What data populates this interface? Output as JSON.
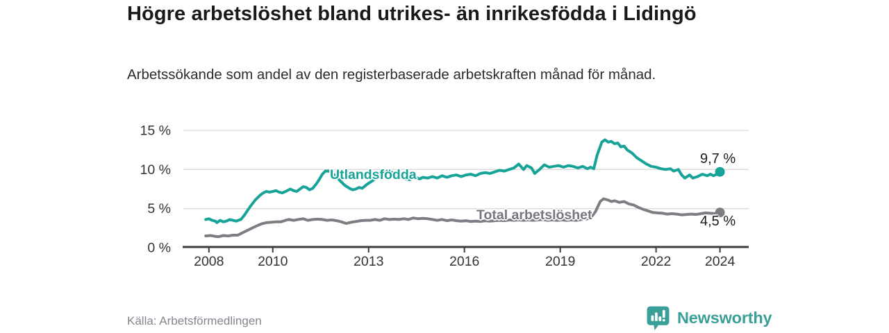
{
  "header": {
    "title": "Högre arbetslöshet bland utrikes- än inrikesfödda i Lidingö",
    "subtitle": "Arbetssökande som andel av den registerbaserade arbetskraften månad för månad."
  },
  "footer": {
    "source": "Källa: Arbetsförmedlingen",
    "brand": "Newsworthy"
  },
  "colors": {
    "series_utlandsfodda": "#17a398",
    "series_total": "#7d7d84",
    "grid": "#d9d9d9",
    "axis": "#3c3c3c",
    "tick_text": "#333333",
    "value_text": "#1a1a1a",
    "muted_text": "#85858f",
    "brand_teal": "#3a9f98"
  },
  "chart_data": {
    "type": "line",
    "title": "Högre arbetslöshet bland utrikes- än inrikesfödda i Lidingö",
    "subtitle": "Arbetssökande som andel av den registerbaserade arbetskraften månad för månad.",
    "source": "Källa: Arbetsförmedlingen",
    "x_axis": {
      "range": [
        2007.2,
        2024.9
      ],
      "tick_years": [
        2008,
        2010,
        2013,
        2016,
        2019,
        2022,
        2024
      ],
      "tick_labels": [
        "2008",
        "2010",
        "2013",
        "2016",
        "2019",
        "2022",
        "2024"
      ]
    },
    "y_axis": {
      "range": [
        0,
        15
      ],
      "ticks": [
        0,
        5,
        10,
        15
      ],
      "tick_labels": [
        "0 %",
        "5 %",
        "10 %",
        "15 %"
      ],
      "grid": true
    },
    "legend_position": "inline-labels",
    "series": [
      {
        "name": "Utlandsfödda",
        "color": "#17a398",
        "end_value": 9.7,
        "end_label": "9,7 %",
        "points": [
          [
            2007.9,
            3.6
          ],
          [
            2008.0,
            3.7
          ],
          [
            2008.1,
            3.5
          ],
          [
            2008.2,
            3.4
          ],
          [
            2008.25,
            3.2
          ],
          [
            2008.35,
            3.5
          ],
          [
            2008.45,
            3.3
          ],
          [
            2008.55,
            3.4
          ],
          [
            2008.65,
            3.6
          ],
          [
            2008.75,
            3.5
          ],
          [
            2008.85,
            3.4
          ],
          [
            2009.0,
            3.6
          ],
          [
            2009.1,
            4.1
          ],
          [
            2009.2,
            4.7
          ],
          [
            2009.3,
            5.3
          ],
          [
            2009.45,
            6.1
          ],
          [
            2009.6,
            6.7
          ],
          [
            2009.7,
            7.0
          ],
          [
            2009.8,
            7.2
          ],
          [
            2009.9,
            7.1
          ],
          [
            2010.0,
            7.2
          ],
          [
            2010.1,
            7.3
          ],
          [
            2010.2,
            7.1
          ],
          [
            2010.3,
            7.0
          ],
          [
            2010.45,
            7.3
          ],
          [
            2010.55,
            7.5
          ],
          [
            2010.65,
            7.3
          ],
          [
            2010.75,
            7.2
          ],
          [
            2010.85,
            7.5
          ],
          [
            2010.95,
            7.8
          ],
          [
            2011.05,
            7.7
          ],
          [
            2011.15,
            7.4
          ],
          [
            2011.25,
            7.6
          ],
          [
            2011.35,
            8.1
          ],
          [
            2011.45,
            8.7
          ],
          [
            2011.55,
            9.4
          ],
          [
            2011.65,
            9.8
          ],
          [
            2011.75,
            9.8
          ],
          [
            2011.85,
            9.6
          ],
          [
            2011.95,
            9.2
          ],
          [
            2012.1,
            8.6
          ],
          [
            2012.25,
            8.0
          ],
          [
            2012.4,
            7.6
          ],
          [
            2012.5,
            7.4
          ],
          [
            2012.6,
            7.5
          ],
          [
            2012.7,
            7.7
          ],
          [
            2012.8,
            7.6
          ],
          [
            2012.95,
            8.1
          ],
          [
            2013.1,
            8.5
          ],
          [
            2013.25,
            8.9
          ],
          [
            2013.4,
            9.5
          ],
          [
            2013.55,
            9.9
          ],
          [
            2013.7,
            9.7
          ],
          [
            2013.85,
            9.3
          ],
          [
            2014.0,
            9.0
          ],
          [
            2014.15,
            8.8
          ],
          [
            2014.3,
            8.7
          ],
          [
            2014.45,
            9.0
          ],
          [
            2014.6,
            8.8
          ],
          [
            2014.7,
            9.0
          ],
          [
            2014.85,
            8.9
          ],
          [
            2015.0,
            9.1
          ],
          [
            2015.15,
            8.9
          ],
          [
            2015.3,
            9.2
          ],
          [
            2015.45,
            9.0
          ],
          [
            2015.6,
            9.2
          ],
          [
            2015.75,
            9.3
          ],
          [
            2015.9,
            9.1
          ],
          [
            2016.05,
            9.3
          ],
          [
            2016.2,
            9.4
          ],
          [
            2016.35,
            9.2
          ],
          [
            2016.5,
            9.5
          ],
          [
            2016.65,
            9.6
          ],
          [
            2016.8,
            9.5
          ],
          [
            2016.95,
            9.7
          ],
          [
            2017.1,
            9.9
          ],
          [
            2017.25,
            9.8
          ],
          [
            2017.4,
            10.0
          ],
          [
            2017.55,
            10.2
          ],
          [
            2017.7,
            10.7
          ],
          [
            2017.85,
            10.0
          ],
          [
            2017.95,
            10.5
          ],
          [
            2018.1,
            10.2
          ],
          [
            2018.2,
            9.5
          ],
          [
            2018.35,
            10.0
          ],
          [
            2018.5,
            10.6
          ],
          [
            2018.65,
            10.3
          ],
          [
            2018.8,
            10.4
          ],
          [
            2018.95,
            10.5
          ],
          [
            2019.1,
            10.3
          ],
          [
            2019.25,
            10.5
          ],
          [
            2019.4,
            10.4
          ],
          [
            2019.55,
            10.2
          ],
          [
            2019.7,
            10.4
          ],
          [
            2019.85,
            10.1
          ],
          [
            2019.95,
            10.3
          ],
          [
            2020.05,
            10.1
          ],
          [
            2020.15,
            11.8
          ],
          [
            2020.3,
            13.5
          ],
          [
            2020.4,
            13.8
          ],
          [
            2020.5,
            13.5
          ],
          [
            2020.6,
            13.6
          ],
          [
            2020.7,
            13.3
          ],
          [
            2020.8,
            13.4
          ],
          [
            2020.9,
            12.9
          ],
          [
            2021.0,
            13.0
          ],
          [
            2021.1,
            12.5
          ],
          [
            2021.25,
            12.1
          ],
          [
            2021.4,
            11.5
          ],
          [
            2021.55,
            11.1
          ],
          [
            2021.7,
            10.7
          ],
          [
            2021.85,
            10.4
          ],
          [
            2022.0,
            10.3
          ],
          [
            2022.15,
            10.1
          ],
          [
            2022.3,
            10.0
          ],
          [
            2022.45,
            10.1
          ],
          [
            2022.55,
            9.8
          ],
          [
            2022.7,
            10.0
          ],
          [
            2022.8,
            9.3
          ],
          [
            2022.9,
            8.9
          ],
          [
            2023.05,
            9.3
          ],
          [
            2023.15,
            8.9
          ],
          [
            2023.3,
            9.1
          ],
          [
            2023.45,
            9.4
          ],
          [
            2023.6,
            9.2
          ],
          [
            2023.7,
            9.4
          ],
          [
            2023.8,
            9.2
          ],
          [
            2023.9,
            9.4
          ],
          [
            2024.0,
            9.7
          ]
        ]
      },
      {
        "name": "Total arbetslöshet",
        "color": "#7d7d84",
        "end_value": 4.5,
        "end_label": "4,5 %",
        "points": [
          [
            2007.9,
            1.5
          ],
          [
            2008.05,
            1.55
          ],
          [
            2008.2,
            1.45
          ],
          [
            2008.3,
            1.4
          ],
          [
            2008.45,
            1.55
          ],
          [
            2008.6,
            1.5
          ],
          [
            2008.75,
            1.6
          ],
          [
            2008.9,
            1.6
          ],
          [
            2009.05,
            1.9
          ],
          [
            2009.2,
            2.2
          ],
          [
            2009.35,
            2.5
          ],
          [
            2009.5,
            2.8
          ],
          [
            2009.65,
            3.05
          ],
          [
            2009.8,
            3.2
          ],
          [
            2009.95,
            3.25
          ],
          [
            2010.1,
            3.3
          ],
          [
            2010.25,
            3.3
          ],
          [
            2010.4,
            3.5
          ],
          [
            2010.5,
            3.6
          ],
          [
            2010.65,
            3.5
          ],
          [
            2010.8,
            3.6
          ],
          [
            2010.95,
            3.7
          ],
          [
            2011.1,
            3.5
          ],
          [
            2011.25,
            3.6
          ],
          [
            2011.4,
            3.65
          ],
          [
            2011.55,
            3.6
          ],
          [
            2011.7,
            3.5
          ],
          [
            2011.85,
            3.55
          ],
          [
            2012.0,
            3.45
          ],
          [
            2012.15,
            3.3
          ],
          [
            2012.3,
            3.1
          ],
          [
            2012.45,
            3.25
          ],
          [
            2012.6,
            3.35
          ],
          [
            2012.75,
            3.45
          ],
          [
            2012.9,
            3.5
          ],
          [
            2013.05,
            3.5
          ],
          [
            2013.2,
            3.6
          ],
          [
            2013.35,
            3.5
          ],
          [
            2013.5,
            3.7
          ],
          [
            2013.65,
            3.6
          ],
          [
            2013.8,
            3.65
          ],
          [
            2013.95,
            3.6
          ],
          [
            2014.1,
            3.7
          ],
          [
            2014.25,
            3.6
          ],
          [
            2014.4,
            3.8
          ],
          [
            2014.55,
            3.7
          ],
          [
            2014.7,
            3.75
          ],
          [
            2014.85,
            3.7
          ],
          [
            2015.0,
            3.6
          ],
          [
            2015.15,
            3.5
          ],
          [
            2015.3,
            3.6
          ],
          [
            2015.45,
            3.45
          ],
          [
            2015.6,
            3.55
          ],
          [
            2015.75,
            3.45
          ],
          [
            2015.9,
            3.4
          ],
          [
            2016.05,
            3.45
          ],
          [
            2016.2,
            3.35
          ],
          [
            2016.35,
            3.4
          ],
          [
            2016.5,
            3.35
          ],
          [
            2016.65,
            3.45
          ],
          [
            2016.8,
            3.4
          ],
          [
            2016.95,
            3.45
          ],
          [
            2017.1,
            3.5
          ],
          [
            2017.25,
            3.45
          ],
          [
            2017.4,
            3.55
          ],
          [
            2017.55,
            3.5
          ],
          [
            2017.7,
            3.55
          ],
          [
            2017.85,
            3.5
          ],
          [
            2018.0,
            3.55
          ],
          [
            2018.15,
            3.5
          ],
          [
            2018.3,
            3.55
          ],
          [
            2018.45,
            3.6
          ],
          [
            2018.6,
            3.5
          ],
          [
            2018.75,
            3.55
          ],
          [
            2018.9,
            3.5
          ],
          [
            2019.05,
            3.55
          ],
          [
            2019.2,
            3.5
          ],
          [
            2019.35,
            3.55
          ],
          [
            2019.5,
            3.5
          ],
          [
            2019.65,
            3.6
          ],
          [
            2019.8,
            3.65
          ],
          [
            2019.95,
            3.8
          ],
          [
            2020.1,
            4.6
          ],
          [
            2020.25,
            5.9
          ],
          [
            2020.35,
            6.25
          ],
          [
            2020.5,
            6.1
          ],
          [
            2020.6,
            5.9
          ],
          [
            2020.7,
            6.0
          ],
          [
            2020.85,
            5.8
          ],
          [
            2021.0,
            5.9
          ],
          [
            2021.15,
            5.6
          ],
          [
            2021.3,
            5.45
          ],
          [
            2021.45,
            5.15
          ],
          [
            2021.6,
            4.9
          ],
          [
            2021.75,
            4.7
          ],
          [
            2021.9,
            4.5
          ],
          [
            2022.05,
            4.45
          ],
          [
            2022.2,
            4.4
          ],
          [
            2022.35,
            4.3
          ],
          [
            2022.5,
            4.35
          ],
          [
            2022.65,
            4.3
          ],
          [
            2022.8,
            4.2
          ],
          [
            2022.95,
            4.25
          ],
          [
            2023.1,
            4.3
          ],
          [
            2023.25,
            4.25
          ],
          [
            2023.4,
            4.35
          ],
          [
            2023.55,
            4.45
          ],
          [
            2023.7,
            4.4
          ],
          [
            2023.85,
            4.35
          ],
          [
            2024.0,
            4.5
          ]
        ]
      }
    ]
  }
}
